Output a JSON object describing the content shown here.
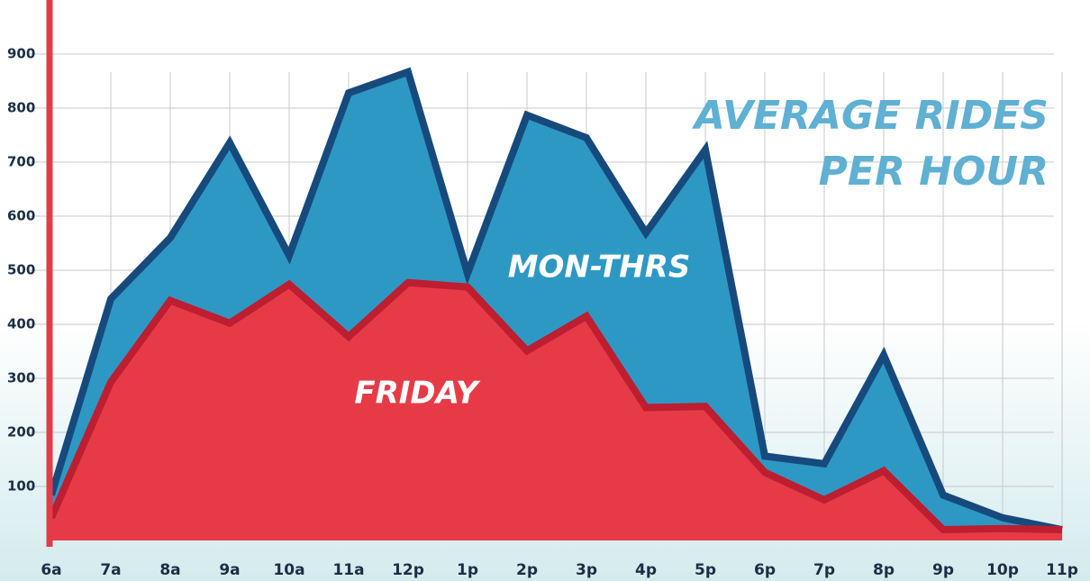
{
  "chart_data": {
    "type": "area",
    "title": "AVERAGE RIDES PER HOUR",
    "categories": [
      "6a",
      "7a",
      "8a",
      "9a",
      "10a",
      "11a",
      "12p",
      "1p",
      "2p",
      "3p",
      "4p",
      "5p",
      "6p",
      "7p",
      "8p",
      "9p",
      "10p",
      "11p"
    ],
    "series": [
      {
        "name": "MON-THRS",
        "color": "#2e98c4",
        "line_color": "#174a7c",
        "values": [
          84,
          447,
          560,
          736,
          527,
          828,
          867,
          494,
          787,
          745,
          569,
          723,
          156,
          142,
          343,
          84,
          42,
          20
        ]
      },
      {
        "name": "FRIDAY",
        "color": "#e63b47",
        "line_color": "#bd1e30",
        "values": [
          42,
          293,
          444,
          402,
          474,
          377,
          477,
          469,
          351,
          415,
          246,
          248,
          126,
          75,
          129,
          20,
          22,
          20
        ]
      }
    ],
    "ylim": [
      0,
      1000
    ],
    "yticks": [
      100,
      200,
      300,
      400,
      500,
      600,
      700,
      800,
      900
    ],
    "grid": true
  }
}
